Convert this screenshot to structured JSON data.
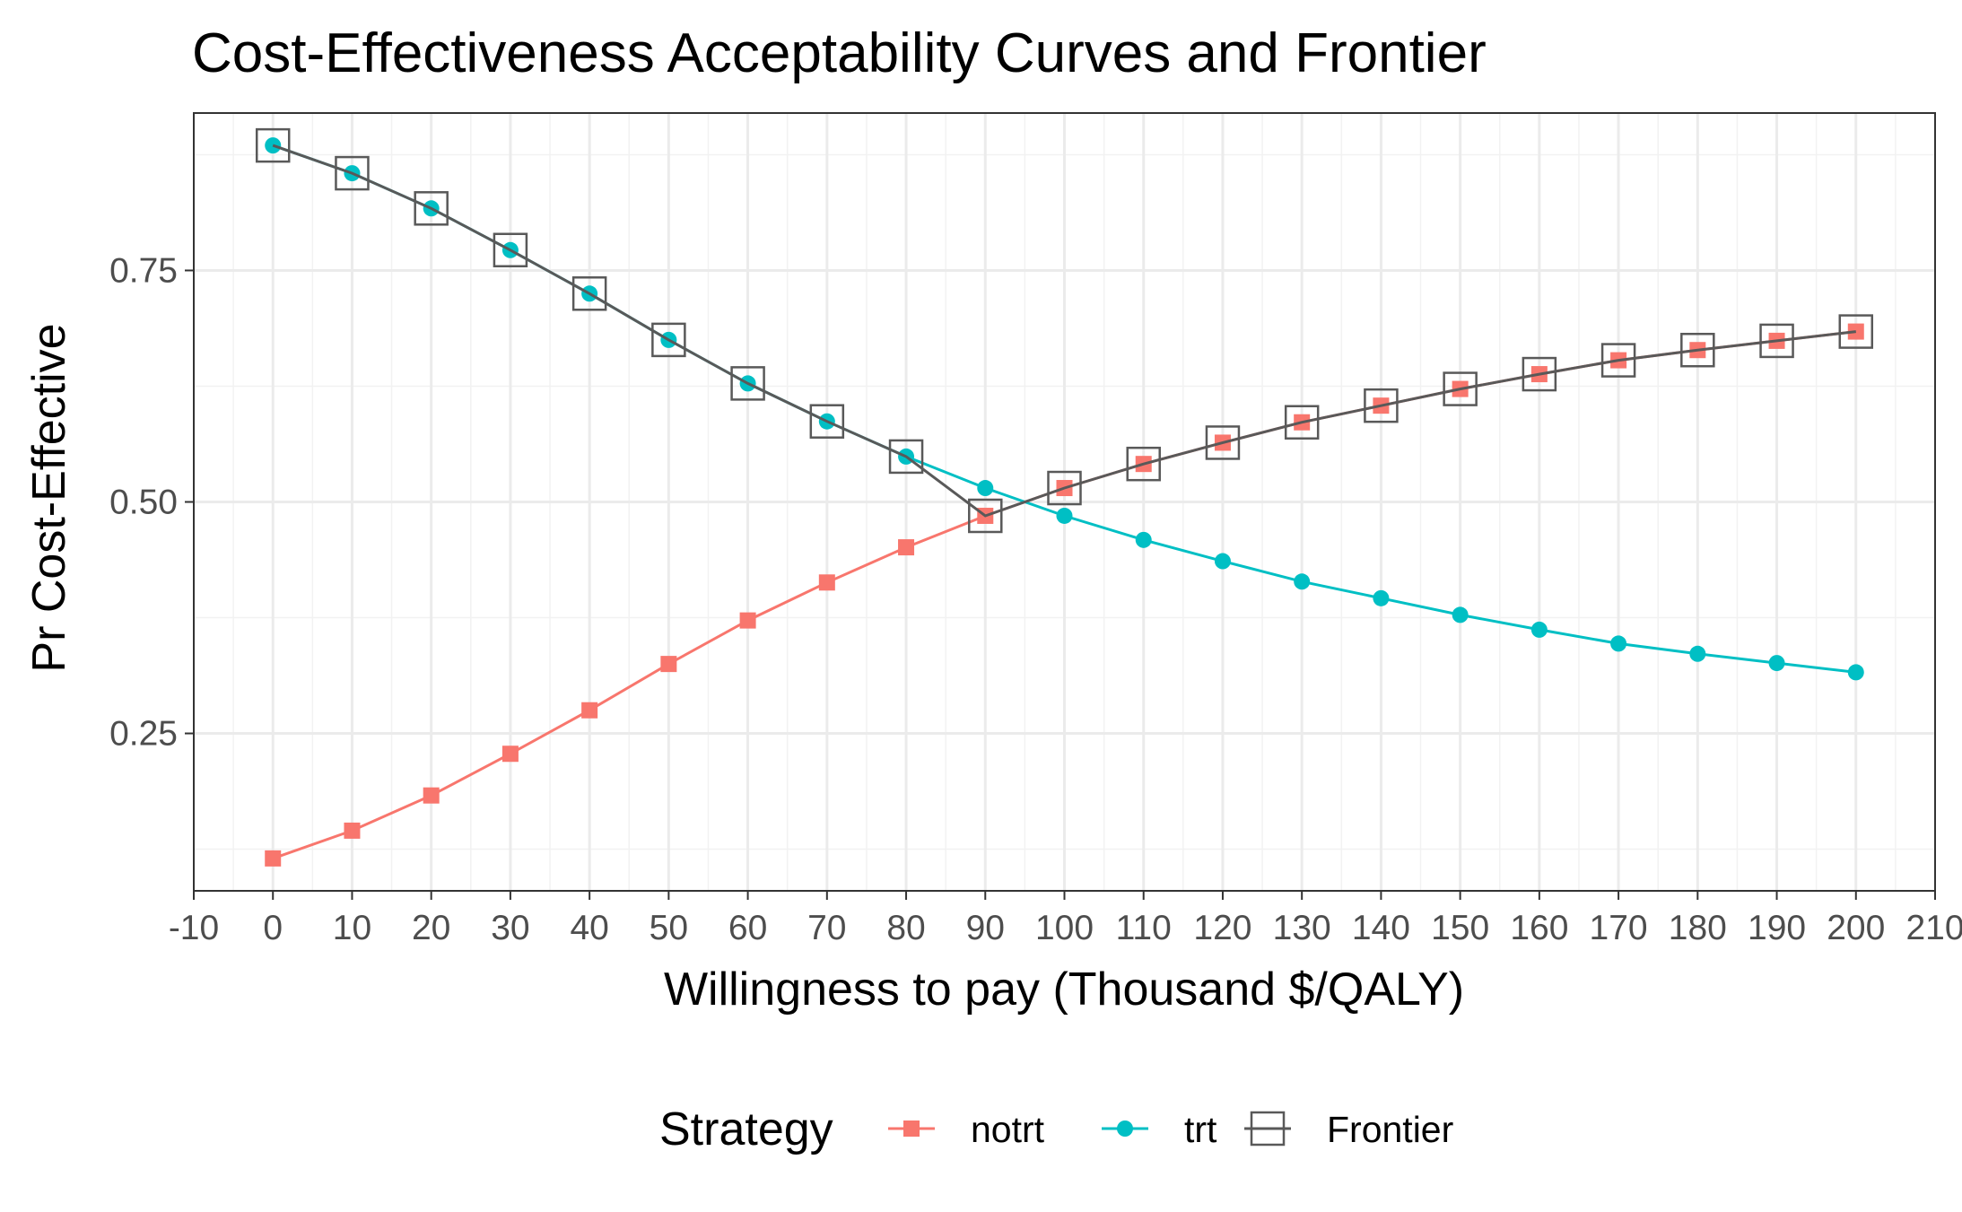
{
  "chart_data": {
    "type": "line",
    "title": "Cost-Effectiveness Acceptability Curves and Frontier",
    "xlabel": "Willingness to pay (Thousand $/QALY)",
    "ylabel": "Pr Cost-Effective",
    "xlim": [
      -10,
      210
    ],
    "ylim": [
      0.08,
      0.92
    ],
    "x_ticks": [
      -10,
      0,
      10,
      20,
      30,
      40,
      50,
      60,
      70,
      80,
      90,
      100,
      110,
      120,
      130,
      140,
      150,
      160,
      170,
      180,
      190,
      200,
      210
    ],
    "x_tick_labels": [
      "-10",
      "0",
      "10",
      "20",
      "30",
      "40",
      "50",
      "60",
      "70",
      "80",
      "90",
      "100",
      "110",
      "120",
      "130",
      "140",
      "150",
      "160",
      "170",
      "180",
      "190",
      "200",
      "210"
    ],
    "y_ticks": [
      0.25,
      0.5,
      0.75
    ],
    "y_tick_labels": [
      "0.25",
      "0.50",
      "0.75"
    ],
    "grid": true,
    "legend": {
      "title": "Strategy",
      "position": "bottom"
    },
    "x": [
      0,
      10,
      20,
      30,
      40,
      50,
      60,
      70,
      80,
      90,
      100,
      110,
      120,
      130,
      140,
      150,
      160,
      170,
      180,
      190,
      200
    ],
    "series": [
      {
        "name": "notrt",
        "color": "#F8766D",
        "marker": "square",
        "values": [
          0.115,
          0.145,
          0.183,
          0.228,
          0.275,
          0.325,
          0.372,
          0.413,
          0.451,
          0.485,
          0.515,
          0.541,
          0.564,
          0.586,
          0.604,
          0.622,
          0.638,
          0.653,
          0.664,
          0.674,
          0.684
        ]
      },
      {
        "name": "trt",
        "color": "#00BFC4",
        "marker": "circle",
        "values": [
          0.885,
          0.855,
          0.817,
          0.772,
          0.725,
          0.675,
          0.628,
          0.587,
          0.549,
          0.515,
          0.485,
          0.459,
          0.436,
          0.414,
          0.396,
          0.378,
          0.362,
          0.347,
          0.336,
          0.326,
          0.316
        ]
      },
      {
        "name": "Frontier",
        "color": "#595959",
        "marker": "open-square",
        "values": [
          0.885,
          0.855,
          0.817,
          0.772,
          0.725,
          0.675,
          0.628,
          0.587,
          0.549,
          0.485,
          0.515,
          0.541,
          0.564,
          0.586,
          0.604,
          0.622,
          0.638,
          0.653,
          0.664,
          0.674,
          0.684
        ]
      }
    ]
  }
}
